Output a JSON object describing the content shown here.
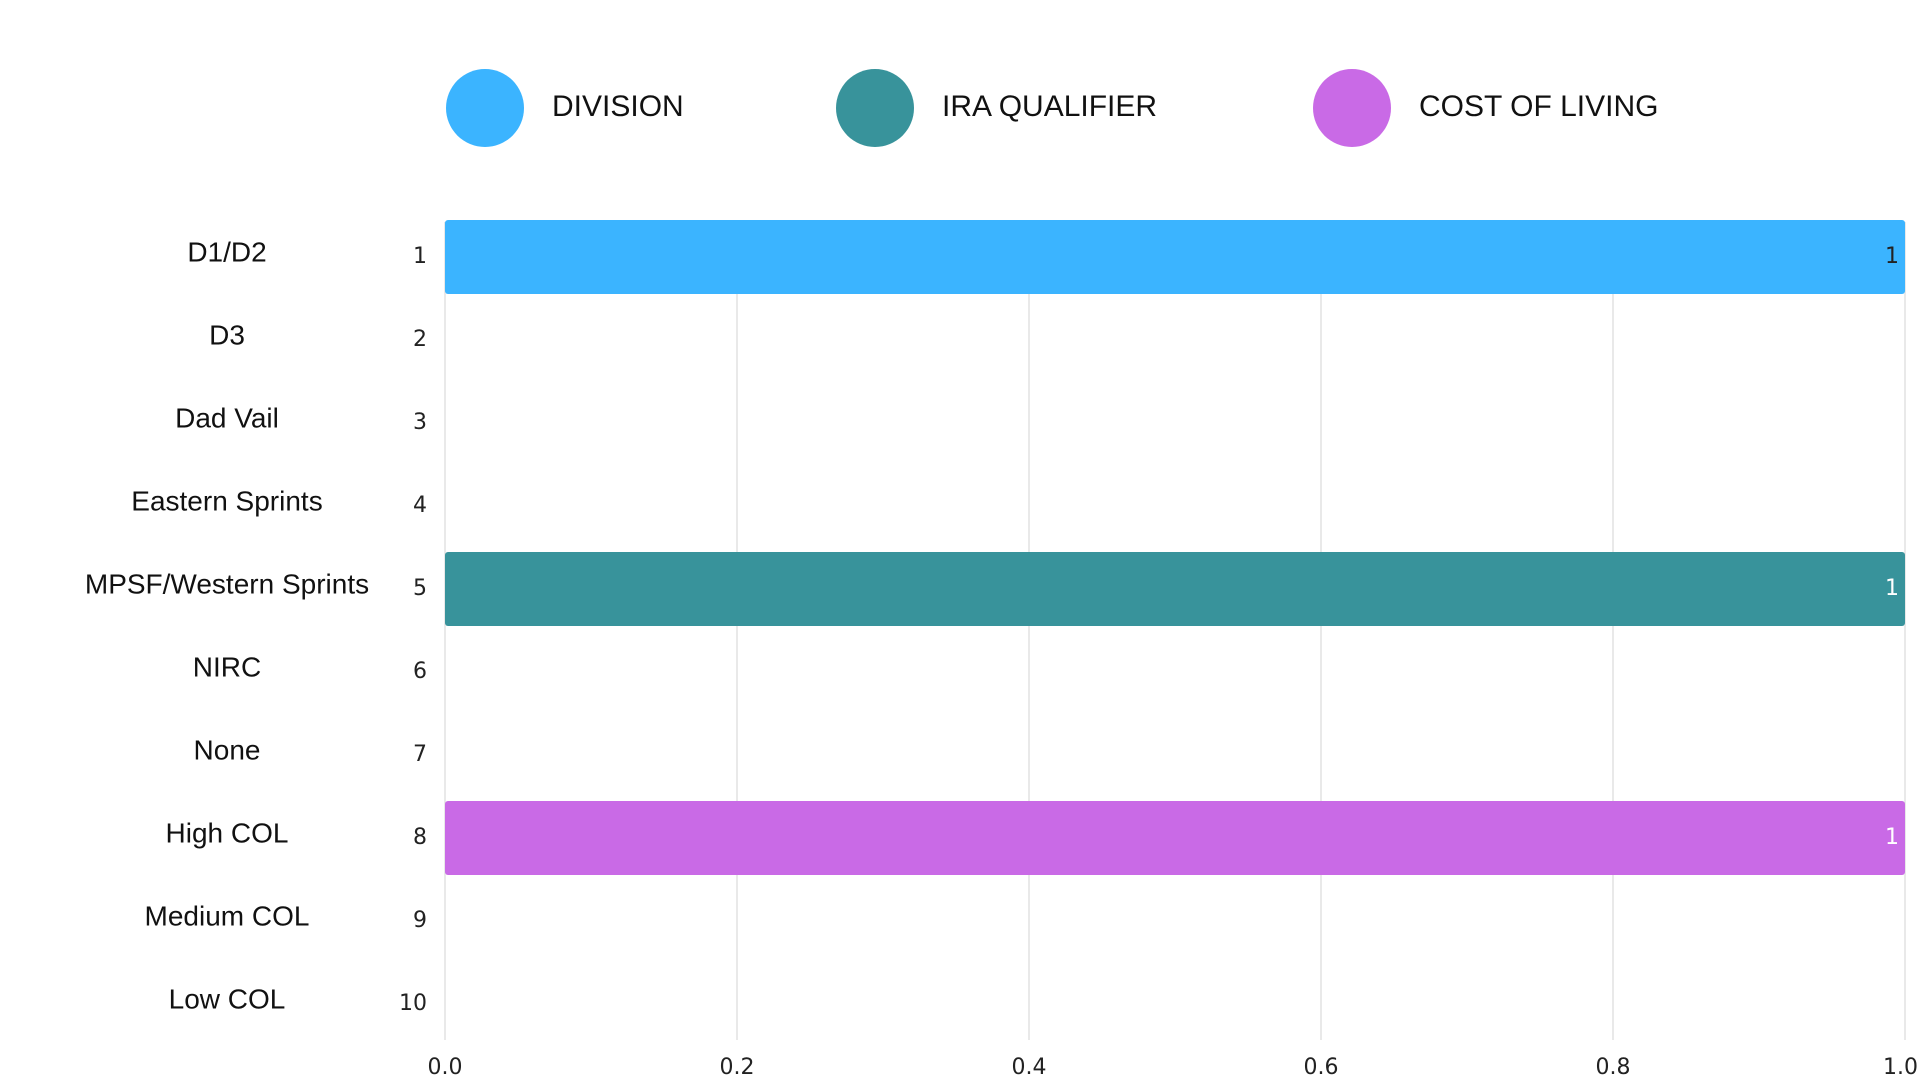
{
  "chart_data": {
    "type": "bar",
    "orientation": "horizontal",
    "categories": [
      "D1/D2",
      "D3",
      "Dad Vail",
      "Eastern Sprints",
      "MPSF/Western Sprints",
      "NIRC",
      "None",
      "High COL",
      "Medium COL",
      "Low COL"
    ],
    "category_numbers": [
      "1",
      "2",
      "3",
      "4",
      "5",
      "6",
      "7",
      "8",
      "9",
      "10"
    ],
    "series": [
      {
        "name": "DIVISION",
        "color": "#3bb4ff",
        "values": [
          1,
          null,
          null,
          null,
          null,
          null,
          null,
          null,
          null,
          null
        ]
      },
      {
        "name": "IRA QUALIFIER",
        "color": "#38939b",
        "values": [
          null,
          null,
          null,
          null,
          1,
          null,
          null,
          null,
          null,
          null
        ]
      },
      {
        "name": "COST OF LIVING",
        "color": "#c96ae6",
        "values": [
          null,
          null,
          null,
          null,
          null,
          null,
          null,
          1,
          null,
          null
        ]
      }
    ],
    "data_labels": [
      {
        "category": "D1/D2",
        "text": "1",
        "color": "#222222"
      },
      {
        "category": "MPSF/Western Sprints",
        "text": "1",
        "color": "#ffffff"
      },
      {
        "category": "High COL",
        "text": "1",
        "color": "#ffffff"
      }
    ],
    "xlim": [
      0,
      1
    ],
    "x_ticks": [
      "0.0",
      "0.2",
      "0.4",
      "0.6",
      "0.8",
      "1.0"
    ],
    "x_tick_values": [
      0,
      0.2,
      0.4,
      0.6,
      0.8,
      1.0
    ],
    "title": "",
    "xlabel": "",
    "ylabel": "",
    "grid": "vertical",
    "legend_position": "top"
  }
}
